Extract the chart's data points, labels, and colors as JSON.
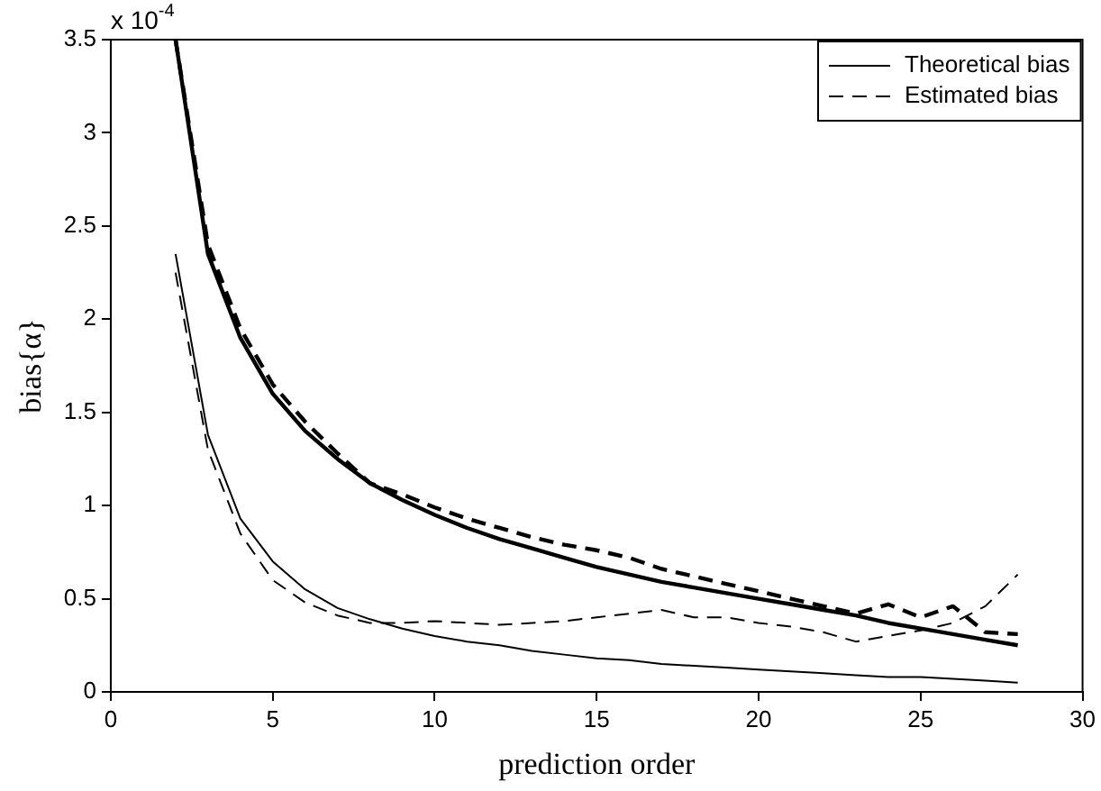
{
  "chart_data": {
    "type": "line",
    "xlabel": "prediction order",
    "ylabel": "bias{α}",
    "annotations": [
      "x 10$^{-4}$"
    ],
    "x": [
      2,
      3,
      4,
      5,
      6,
      7,
      8,
      9,
      10,
      11,
      12,
      13,
      14,
      15,
      16,
      17,
      18,
      19,
      20,
      21,
      22,
      23,
      24,
      25,
      26,
      27,
      28
    ],
    "series": [
      {
        "name": "Theoretical bias",
        "color": "#000000",
        "line_style": "solid",
        "values": [
          3.5,
          2.35,
          1.9,
          1.6,
          1.4,
          1.25,
          1.12,
          1.03,
          0.95,
          0.88,
          0.82,
          0.77,
          0.72,
          0.67,
          0.63,
          0.59,
          0.56,
          0.53,
          0.5,
          0.47,
          0.44,
          0.41,
          0.37,
          0.34,
          0.31,
          0.28,
          0.25
        ]
      },
      {
        "name": "Estimated bias",
        "color": "#000000",
        "line_style": "dashed",
        "values": [
          3.5,
          2.4,
          1.95,
          1.65,
          1.45,
          1.28,
          1.12,
          1.06,
          0.99,
          0.93,
          0.88,
          0.83,
          0.79,
          0.76,
          0.72,
          0.66,
          0.62,
          0.58,
          0.54,
          0.5,
          0.46,
          0.42,
          0.47,
          0.4,
          0.46,
          0.32,
          0.31
        ]
      },
      {
        "color": "#000000",
        "line_style": "solid",
        "values": [
          2.35,
          1.38,
          0.93,
          0.7,
          0.55,
          0.45,
          0.39,
          0.34,
          0.3,
          0.27,
          0.25,
          0.22,
          0.2,
          0.18,
          0.17,
          0.15,
          0.14,
          0.13,
          0.12,
          0.11,
          0.1,
          0.09,
          0.08,
          0.08,
          0.07,
          0.06,
          0.05
        ]
      },
      {
        "color": "#000000",
        "line_style": "dashed",
        "values": [
          2.25,
          1.3,
          0.85,
          0.6,
          0.48,
          0.41,
          0.37,
          0.37,
          0.38,
          0.37,
          0.36,
          0.37,
          0.38,
          0.4,
          0.42,
          0.44,
          0.4,
          0.4,
          0.37,
          0.35,
          0.32,
          0.27,
          0.3,
          0.33,
          0.37,
          0.46,
          0.63
        ]
      }
    ],
    "xlim": [
      0,
      30
    ],
    "xticks": [
      0,
      5,
      10,
      15,
      20,
      25,
      30
    ],
    "ylim": [
      0,
      3.5
    ],
    "yticks": [
      0,
      0.5,
      1,
      1.5,
      2,
      2.5,
      3,
      3.5
    ],
    "grid": false,
    "legend": "top right",
    "marker": "none"
  }
}
